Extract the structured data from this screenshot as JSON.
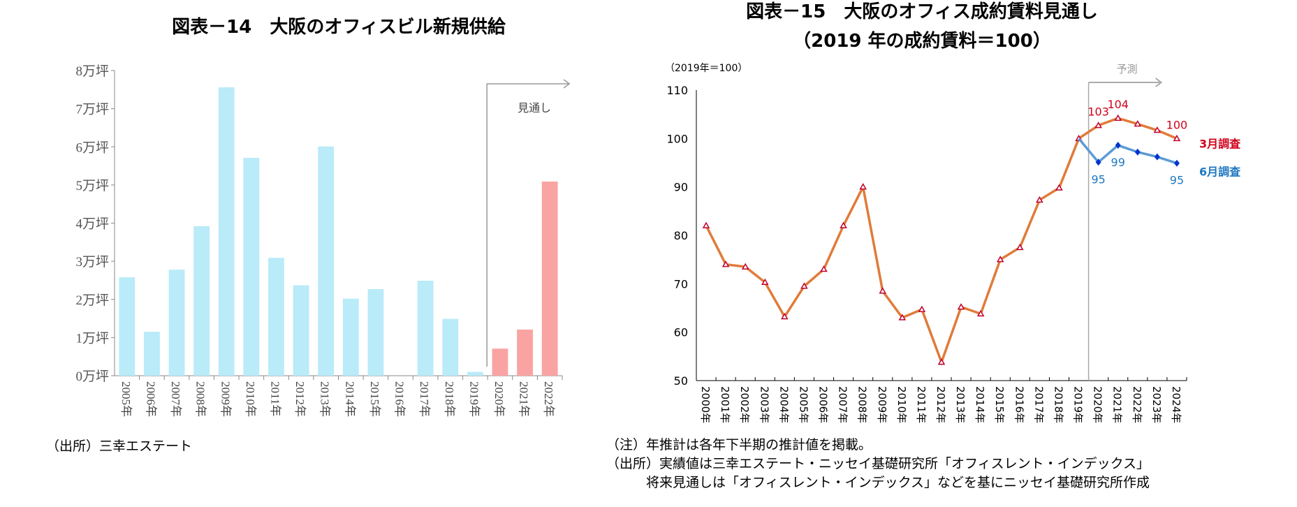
{
  "left": {
    "title": "図表－14　大阪のオフィスビル新規供給",
    "source": "（出所）三幸エステート",
    "annotation": "見通し",
    "chart_data": {
      "type": "bar",
      "categories": [
        "2005年",
        "2006年",
        "2007年",
        "2008年",
        "2009年",
        "2010年",
        "2011年",
        "2012年",
        "2013年",
        "2014年",
        "2015年",
        "2016年",
        "2017年",
        "2018年",
        "2019年",
        "2020年",
        "2021年",
        "2022年"
      ],
      "values": [
        2.58,
        1.15,
        2.78,
        3.92,
        7.56,
        5.71,
        3.09,
        2.37,
        6.01,
        2.02,
        2.27,
        0,
        2.49,
        1.49,
        0.1,
        0.71,
        1.21,
        5.09
      ],
      "forecast_from": "2020年",
      "colors": {
        "actual": "#b9ebf8",
        "forecast": "#faa3a3"
      },
      "ylim": [
        0,
        8
      ],
      "yticks": [
        "0万坪",
        "1万坪",
        "2万坪",
        "3万坪",
        "4万坪",
        "5万坪",
        "6万坪",
        "7万坪",
        "8万坪"
      ],
      "unit": "万坪",
      "grid": false
    }
  },
  "right": {
    "title_line1": "図表－15　大阪のオフィス成約賃料見通し",
    "title_line2": "（2019 年の成約賃料＝100）",
    "notes": [
      "（注）年推計は各年下半期の推計値を掲載。",
      "（出所）実績値は三幸エステート・ニッセイ基礎研究所「オフィスレント・インデックス」",
      "　　　将来見通しは「オフィスレント・インデックス」などを基にニッセイ基礎研究所作成"
    ],
    "annotation": "予測",
    "chart_data": {
      "type": "line",
      "ylabel": "（2019年＝100）",
      "ylim": [
        50,
        110
      ],
      "yticks": [
        50,
        60,
        70,
        80,
        90,
        100,
        110
      ],
      "grid": false,
      "categories": [
        "2000年",
        "2001年",
        "2002年",
        "2003年",
        "2004年",
        "2005年",
        "2006年",
        "2007年",
        "2008年",
        "2009年",
        "2010年",
        "2011年",
        "2012年",
        "2013年",
        "2014年",
        "2015年",
        "2016年",
        "2017年",
        "2018年",
        "2019年",
        "2020年",
        "2021年",
        "2022年",
        "2023年",
        "2024年"
      ],
      "series": [
        {
          "name": "3月調査",
          "color": "#e07b39",
          "label_color": "#d0021b",
          "values": [
            82,
            74,
            73.5,
            70.3,
            63.2,
            69.5,
            73,
            82,
            90,
            68.5,
            63,
            64.7,
            53.8,
            65.2,
            63.8,
            75,
            77.5,
            87.3,
            89.8,
            100,
            102.7,
            104.2,
            103,
            101.7,
            100
          ]
        },
        {
          "name": "6月調査",
          "color": "#5b9bd5",
          "label_color": "#1f78c1",
          "values": [
            null,
            null,
            null,
            null,
            null,
            null,
            null,
            null,
            null,
            null,
            null,
            null,
            null,
            null,
            null,
            null,
            null,
            null,
            null,
            100,
            95.1,
            98.6,
            97.2,
            96.2,
            94.9
          ]
        }
      ],
      "data_labels": [
        {
          "series": "3月調査",
          "category": "2020年",
          "text": "103"
        },
        {
          "series": "3月調査",
          "category": "2021年",
          "text": "104"
        },
        {
          "series": "3月調査",
          "category": "2024年",
          "text": "100"
        },
        {
          "series": "6月調査",
          "category": "2020年",
          "text": "95"
        },
        {
          "series": "6月調査",
          "category": "2021年",
          "text": "99"
        },
        {
          "series": "6月調査",
          "category": "2024年",
          "text": "95"
        }
      ],
      "forecast_from": "2019年"
    }
  }
}
